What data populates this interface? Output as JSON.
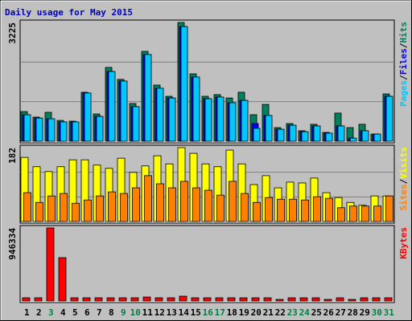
{
  "chart_data": {
    "type": "bar",
    "title": "Daily usage for May 2015",
    "legend_separator": "/",
    "categories": [
      "1",
      "2",
      "3",
      "4",
      "5",
      "6",
      "7",
      "8",
      "9",
      "10",
      "11",
      "12",
      "13",
      "14",
      "15",
      "16",
      "17",
      "18",
      "19",
      "20",
      "21",
      "22",
      "23",
      "24",
      "25",
      "26",
      "27",
      "28",
      "29",
      "30",
      "31"
    ],
    "category_colors": [
      "#000000",
      "#000000",
      "#008040",
      "#000000",
      "#000000",
      "#000000",
      "#000000",
      "#000000",
      "#008040",
      "#008040",
      "#000000",
      "#000000",
      "#000000",
      "#000000",
      "#000000",
      "#008040",
      "#008040",
      "#000000",
      "#000000",
      "#000000",
      "#000000",
      "#000000",
      "#008040",
      "#008040",
      "#000000",
      "#000000",
      "#000000",
      "#000000",
      "#000000",
      "#008040",
      "#008040"
    ],
    "panels": [
      {
        "ylim": [
          0,
          3225
        ],
        "yticks": [
          3225
        ],
        "grid": true,
        "series": [
          {
            "name": "Hits",
            "color": "#00805c",
            "values": [
              805,
              655,
              785,
              565,
              545,
              1330,
              740,
              2005,
              1680,
              1025,
              2440,
              1525,
              1220,
              3225,
              1830,
              1220,
              1265,
              1175,
              1330,
              720,
              1000,
              370,
              480,
              285,
              460,
              240,
              765,
              370,
              460,
              195,
              1285
            ]
          },
          {
            "name": "Files",
            "color": "#0000ff",
            "values": [
              720,
              630,
              610,
              525,
              525,
              1310,
              675,
              1895,
              1635,
              940,
              2355,
              1440,
              1175,
              3115,
              1745,
              1155,
              1200,
              1045,
              1110,
              480,
              700,
              325,
              435,
              260,
              415,
              220,
              415,
              85,
              285,
              195,
              1220
            ]
          },
          {
            "name": "Pages",
            "color": "#00c8ff",
            "values": [
              720,
              630,
              610,
              525,
              525,
              1310,
              675,
              1895,
              1635,
              940,
              2355,
              1440,
              1175,
              3115,
              1745,
              1155,
              1200,
              1045,
              1110,
              350,
              700,
              325,
              435,
              260,
              415,
              220,
              415,
              85,
              285,
              195,
              1220
            ]
          }
        ]
      },
      {
        "ylim": [
          0,
          182
        ],
        "yticks": [
          182
        ],
        "grid": true,
        "series": [
          {
            "name": "Visits",
            "color": "#ffff00",
            "values": [
              158,
              135,
              123,
              135,
              152,
              152,
              139,
              131,
              156,
              121,
              137,
              162,
              142,
              182,
              168,
              142,
              135,
              176,
              142,
              91,
              113,
              83,
              97,
              95,
              107,
              71,
              59,
              47,
              40,
              63,
              63
            ]
          },
          {
            "name": "Sites",
            "color": "#ff8000",
            "values": [
              71,
              47,
              63,
              69,
              45,
              53,
              63,
              73,
              69,
              83,
              113,
              93,
              83,
              99,
              83,
              77,
              65,
              99,
              69,
              47,
              59,
              55,
              55,
              53,
              61,
              57,
              34,
              38,
              38,
              38,
              63
            ]
          }
        ]
      },
      {
        "ylim": [
          0,
          946334
        ],
        "yticks": [
          946334
        ],
        "grid": false,
        "series": [
          {
            "name": "KBytes",
            "color": "#ff0000",
            "values": [
              41000,
              41000,
              946334,
              561000,
              41000,
              41000,
              41000,
              41000,
              41000,
              41000,
              51000,
              41000,
              41000,
              62000,
              41000,
              41000,
              41000,
              41000,
              41000,
              41000,
              41000,
              20000,
              41000,
              41000,
              41000,
              20000,
              41000,
              20000,
              41000,
              41000,
              41000
            ]
          }
        ]
      }
    ]
  }
}
